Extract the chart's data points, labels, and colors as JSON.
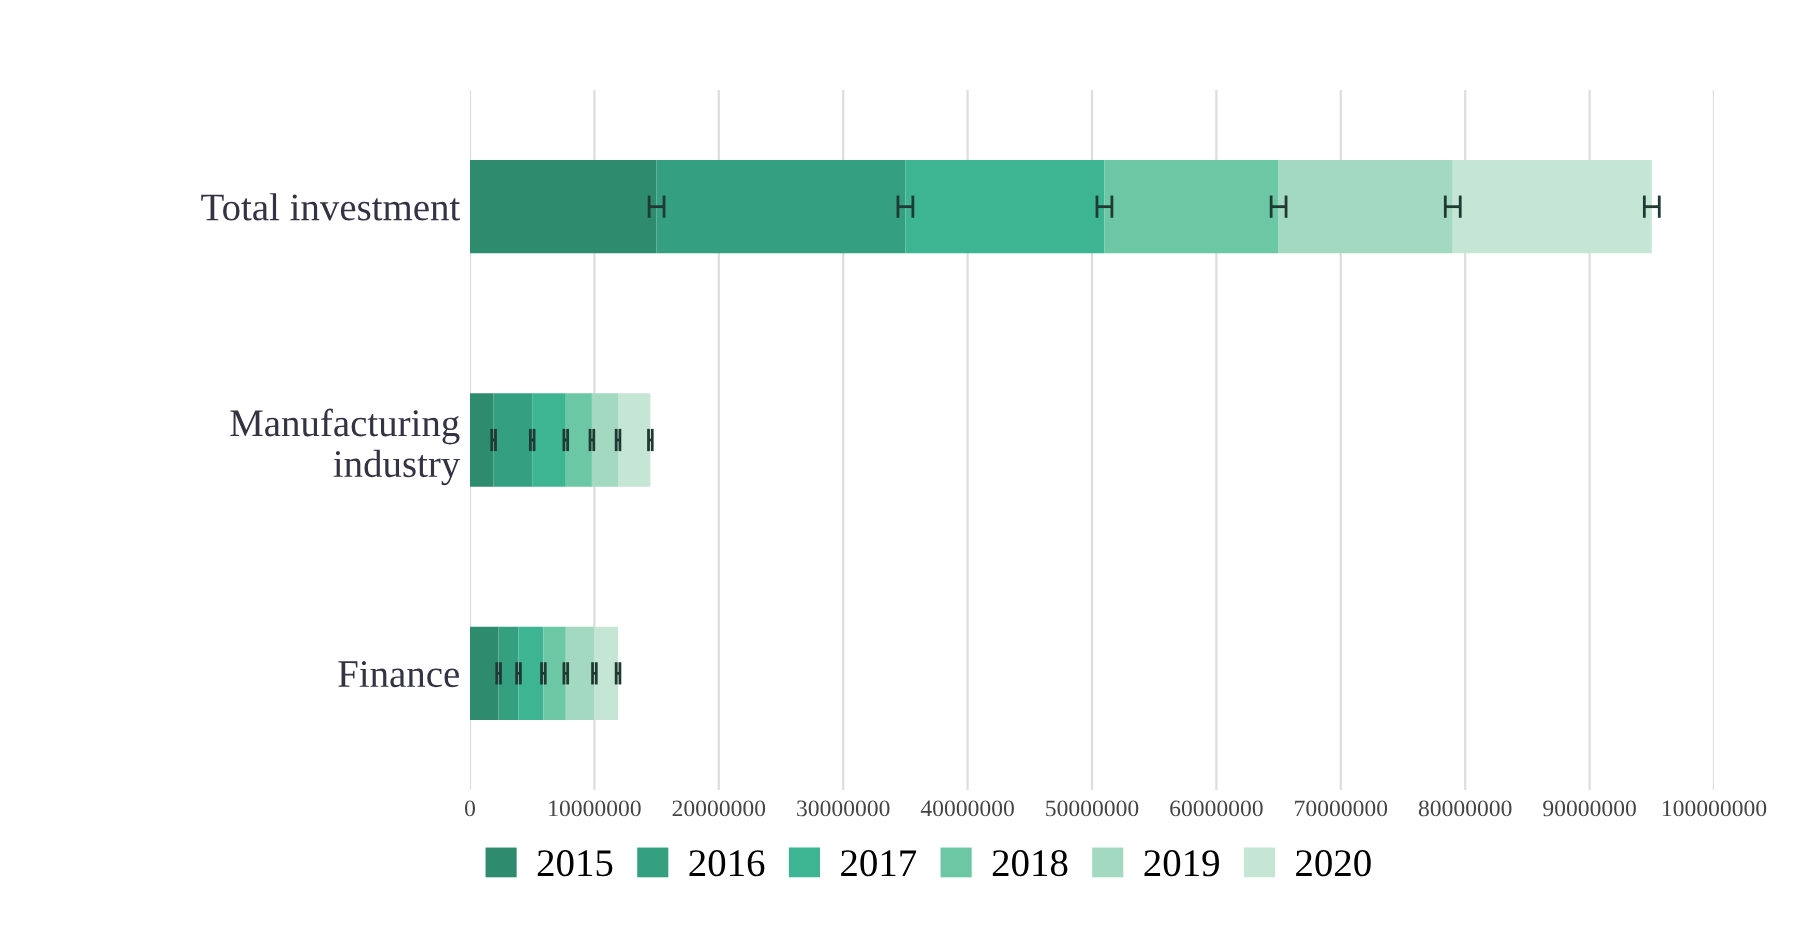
{
  "chart_data": {
    "type": "bar",
    "orientation": "horizontal",
    "stacked": true,
    "categories": [
      "Total investment",
      "Manufacturing\nindustry",
      "Finance"
    ],
    "series": [
      {
        "name": "2015",
        "color": "#2e8b6e",
        "values": [
          15000000,
          1900000,
          2300000
        ],
        "errors": [
          600000,
          150000,
          150000
        ]
      },
      {
        "name": "2016",
        "color": "#35a080",
        "values": [
          20000000,
          3100000,
          1600000
        ],
        "errors": [
          600000,
          150000,
          150000
        ]
      },
      {
        "name": "2017",
        "color": "#3db592",
        "values": [
          16000000,
          2700000,
          2000000
        ],
        "errors": [
          600000,
          150000,
          150000
        ]
      },
      {
        "name": "2018",
        "color": "#6cc7a4",
        "values": [
          14000000,
          2100000,
          1800000
        ],
        "errors": [
          600000,
          150000,
          150000
        ]
      },
      {
        "name": "2019",
        "color": "#a3d9c0",
        "values": [
          14000000,
          2100000,
          2300000
        ],
        "errors": [
          600000,
          150000,
          150000
        ]
      },
      {
        "name": "2020",
        "color": "#c5e5d5",
        "values": [
          16000000,
          2600000,
          1900000
        ],
        "errors": [
          600000,
          150000,
          150000
        ]
      }
    ],
    "xlim": [
      0,
      100000000
    ],
    "xticks": [
      0,
      10000000,
      20000000,
      30000000,
      40000000,
      50000000,
      60000000,
      70000000,
      80000000,
      90000000,
      100000000
    ],
    "grid": "x",
    "legend": "bottom"
  }
}
